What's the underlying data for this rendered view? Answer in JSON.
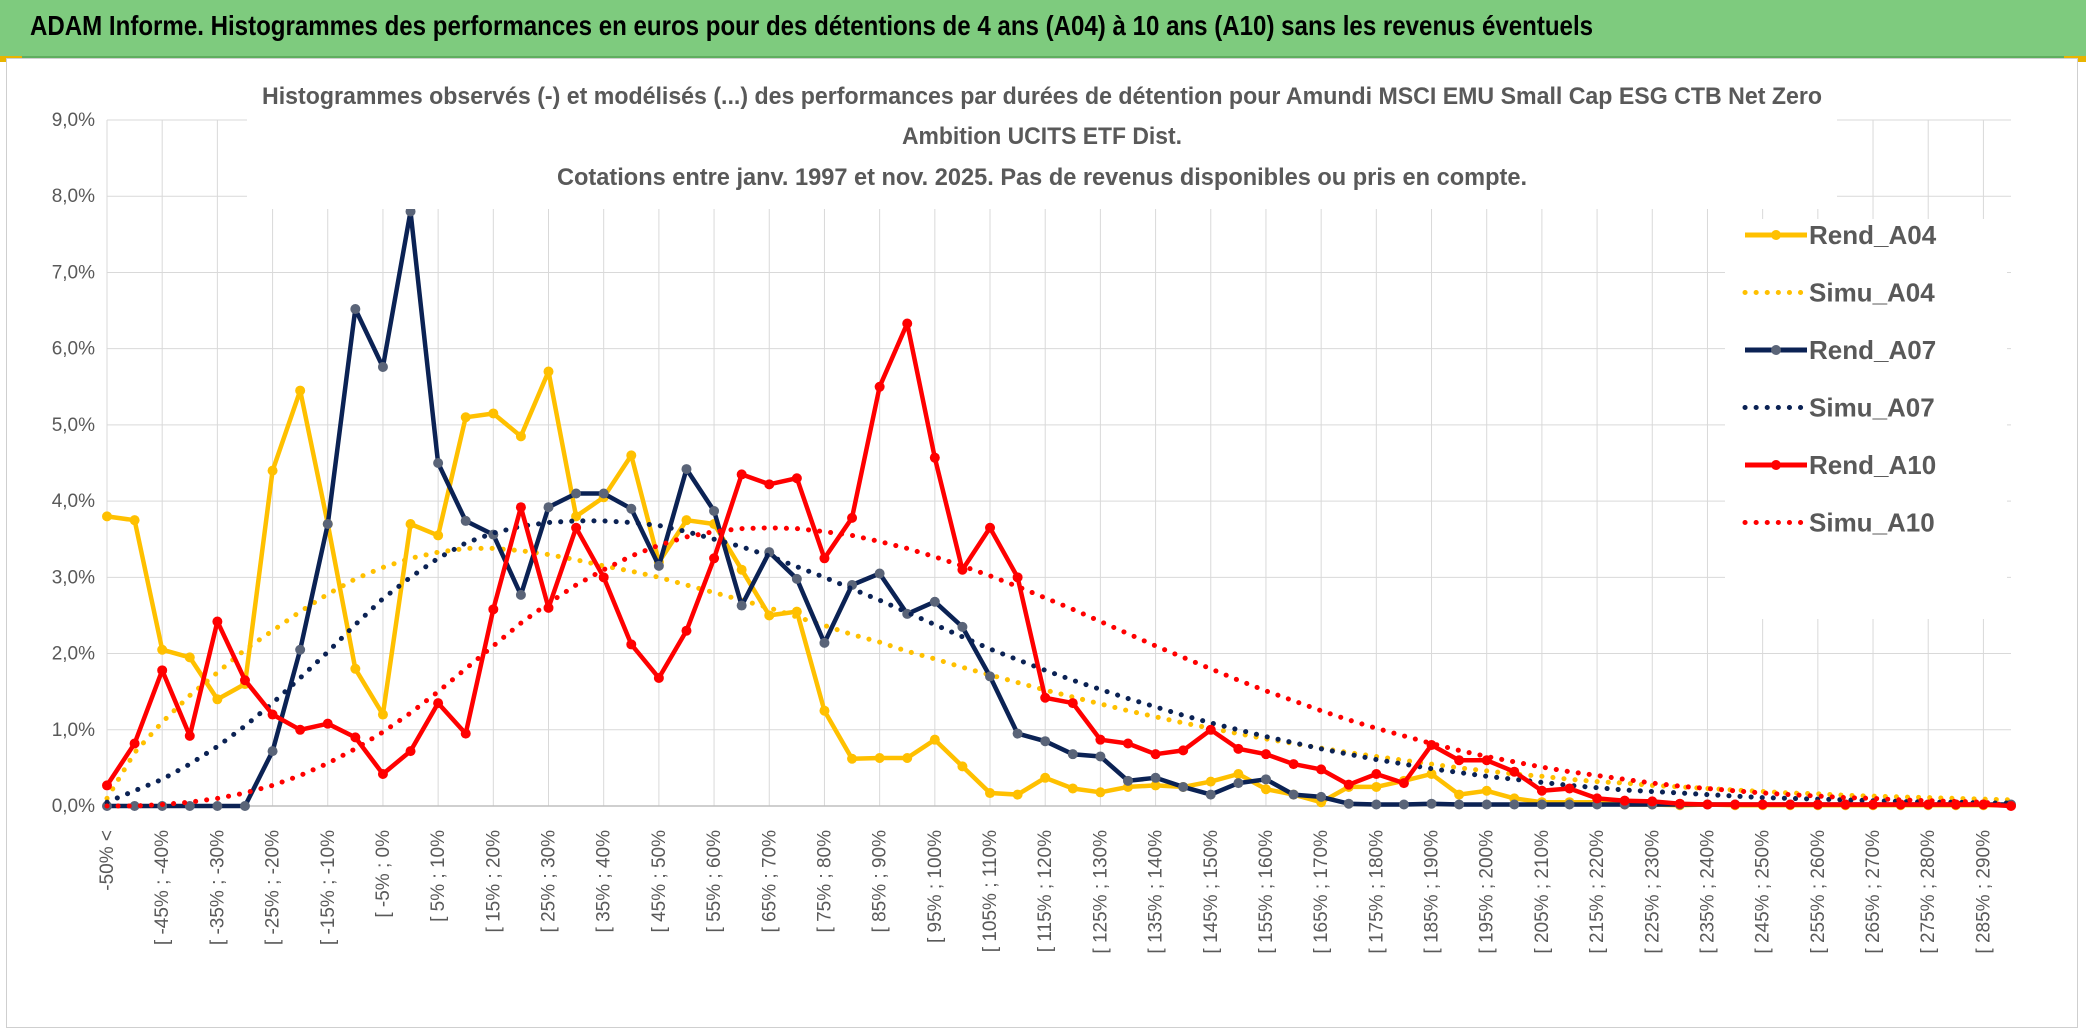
{
  "banner": {
    "title": "ADAM Informe. Histogrammes des performances en euros pour des détentions de 4 ans (A04) à 10 ans (A10) sans les revenus éventuels"
  },
  "colors": {
    "banner_bg": "#7ecb7e",
    "a04": "#ffc000",
    "a07": "#0b2254",
    "a07_marker": "#5a6478",
    "a10": "#ff0000",
    "grid": "#d9d9d9"
  },
  "chart_data": {
    "type": "line",
    "title_lines": [
      "Histogrammes observés (-) et modélisés (...) des performances par durées de détention pour Amundi MSCI EMU Small Cap ESG CTB Net Zero",
      "Ambition UCITS ETF Dist.",
      "Cotations entre janv. 1997 et nov. 2025. Pas de revenus disponibles ou pris en compte."
    ],
    "ylim": [
      0,
      9
    ],
    "y_ticks": [
      "0,0%",
      "1,0%",
      "2,0%",
      "3,0%",
      "4,0%",
      "5,0%",
      "6,0%",
      "7,0%",
      "8,0%",
      "9,0%"
    ],
    "x_tick_labels": [
      "-50% <",
      "[ -45% ; -40%",
      "[ -35% ; -30%",
      "[ -25% ; -20%",
      "[ -15% ; -10%",
      "[ -5% ; 0%",
      "[ 5% ; 10%",
      "[ 15% ; 20%",
      "[ 25% ; 30%",
      "[ 35% ; 40%",
      "[ 45% ; 50%",
      "[ 55% ; 60%",
      "[ 65% ; 70%",
      "[ 75% ; 80%",
      "[ 85% ; 90%",
      "[ 95% ; 100%",
      "[ 105% ; 110%",
      "[ 115% ; 120%",
      "[ 125% ; 130%",
      "[ 135% ; 140%",
      "[ 145% ; 150%",
      "[ 155% ; 160%",
      "[ 165% ; 170%",
      "[ 175% ; 180%",
      "[ 185% ; 190%",
      "[ 195% ; 200%",
      "[ 205% ; 210%",
      "[ 215% ; 220%",
      "[ 225% ; 230%",
      "[ 235% ; 240%",
      "[ 245% ; 250%",
      "[ 255% ; 260%",
      "[ 265% ; 270%",
      "[ 275% ; 280%",
      "[ 285% ; 290%"
    ],
    "series": [
      {
        "name": "Rend_A04",
        "style": "solid",
        "color": "#ffc000",
        "values": [
          3.8,
          3.75,
          2.05,
          1.95,
          1.4,
          1.6,
          4.4,
          5.45,
          3.7,
          1.8,
          1.2,
          3.7,
          3.55,
          5.1,
          5.15,
          4.85,
          5.7,
          3.8,
          4.05,
          4.6,
          3.2,
          3.75,
          3.7,
          3.1,
          2.5,
          2.55,
          1.25,
          0.62,
          0.63,
          0.63,
          0.87,
          0.52,
          0.17,
          0.15,
          0.37,
          0.23,
          0.18,
          0.25,
          0.27,
          0.25,
          0.32,
          0.42,
          0.22,
          0.15,
          0.05,
          0.25,
          0.25,
          0.33,
          0.42,
          0.15,
          0.2,
          0.1,
          0.05,
          0.05,
          0.05,
          0.02,
          0.02,
          0.01,
          0.02,
          0.01,
          0.01,
          0.01,
          0.01,
          0.01,
          0.01,
          0.01,
          0.01,
          0.01,
          0.01,
          0.01
        ]
      },
      {
        "name": "Simu_A04",
        "style": "dotted",
        "color": "#ffc000",
        "values": [
          0.1,
          0.7,
          1.1,
          1.45,
          1.75,
          2.05,
          2.3,
          2.55,
          2.78,
          2.98,
          3.13,
          3.25,
          3.33,
          3.38,
          3.38,
          3.35,
          3.3,
          3.23,
          3.15,
          3.08,
          3.0,
          2.9,
          2.8,
          2.7,
          2.6,
          2.48,
          2.37,
          2.25,
          2.15,
          2.03,
          1.93,
          1.82,
          1.72,
          1.62,
          1.52,
          1.43,
          1.34,
          1.25,
          1.17,
          1.09,
          1.02,
          0.95,
          0.88,
          0.82,
          0.76,
          0.7,
          0.65,
          0.6,
          0.55,
          0.5,
          0.46,
          0.42,
          0.39,
          0.35,
          0.32,
          0.3,
          0.27,
          0.25,
          0.23,
          0.21,
          0.19,
          0.17,
          0.16,
          0.14,
          0.13,
          0.12,
          0.11,
          0.1,
          0.09,
          0.08
        ]
      },
      {
        "name": "Rend_A07",
        "style": "solid",
        "color": "#0b2254",
        "values": [
          0,
          0,
          0,
          0,
          0,
          0,
          0.72,
          2.05,
          3.7,
          6.52,
          5.76,
          7.8,
          4.5,
          3.74,
          3.56,
          2.77,
          3.92,
          4.1,
          4.1,
          3.9,
          3.15,
          4.42,
          3.87,
          2.63,
          3.33,
          2.98,
          2.14,
          2.9,
          3.05,
          2.52,
          2.68,
          2.35,
          1.7,
          0.95,
          0.85,
          0.68,
          0.65,
          0.33,
          0.37,
          0.25,
          0.15,
          0.3,
          0.35,
          0.15,
          0.12,
          0.03,
          0.02,
          0.02,
          0.03,
          0.02,
          0.02,
          0.02,
          0.02,
          0.02,
          0.02,
          0.02,
          0.02,
          0.02,
          0.02,
          0.02,
          0.02,
          0.02,
          0.02,
          0.02,
          0.02,
          0.02,
          0.02,
          0.02,
          0.02,
          0.02
        ]
      },
      {
        "name": "Simu_A07",
        "style": "dotted",
        "color": "#0b2254",
        "values": [
          0.05,
          0.2,
          0.35,
          0.55,
          0.78,
          1.05,
          1.35,
          1.68,
          2.02,
          2.38,
          2.72,
          3.0,
          3.25,
          3.45,
          3.58,
          3.67,
          3.72,
          3.74,
          3.74,
          3.72,
          3.68,
          3.6,
          3.5,
          3.4,
          3.28,
          3.14,
          3.0,
          2.85,
          2.7,
          2.54,
          2.38,
          2.22,
          2.06,
          1.92,
          1.78,
          1.65,
          1.53,
          1.41,
          1.3,
          1.19,
          1.09,
          1.0,
          0.91,
          0.83,
          0.75,
          0.68,
          0.61,
          0.55,
          0.49,
          0.44,
          0.39,
          0.35,
          0.31,
          0.27,
          0.24,
          0.21,
          0.19,
          0.17,
          0.15,
          0.13,
          0.11,
          0.1,
          0.09,
          0.08,
          0.07,
          0.06,
          0.05,
          0.05,
          0.04,
          0.04
        ]
      },
      {
        "name": "Rend_A10",
        "style": "solid",
        "color": "#ff0000",
        "values": [
          0.27,
          0.82,
          1.78,
          0.92,
          2.42,
          1.65,
          1.2,
          1.0,
          1.08,
          0.9,
          0.42,
          0.72,
          1.35,
          0.95,
          2.58,
          3.92,
          2.6,
          3.65,
          3.0,
          2.12,
          1.68,
          2.3,
          3.25,
          4.35,
          4.22,
          4.3,
          3.25,
          3.78,
          5.5,
          6.33,
          4.57,
          3.1,
          3.65,
          3.0,
          1.42,
          1.35,
          0.87,
          0.82,
          0.68,
          0.73,
          1.0,
          0.75,
          0.68,
          0.55,
          0.48,
          0.28,
          0.42,
          0.3,
          0.8,
          0.6,
          0.6,
          0.45,
          0.2,
          0.23,
          0.1,
          0.07,
          0.06,
          0.03,
          0.02,
          0.02,
          0.02,
          0.02,
          0.02,
          0.02,
          0.02,
          0.02,
          0.02,
          0.02,
          0.02,
          0.0
        ]
      },
      {
        "name": "Simu_A10",
        "style": "dotted",
        "color": "#ff0000",
        "values": [
          0.0,
          0.0,
          0.02,
          0.05,
          0.1,
          0.17,
          0.27,
          0.4,
          0.56,
          0.75,
          0.97,
          1.22,
          1.5,
          1.8,
          2.1,
          2.4,
          2.66,
          2.9,
          3.1,
          3.28,
          3.42,
          3.53,
          3.6,
          3.64,
          3.65,
          3.64,
          3.6,
          3.55,
          3.47,
          3.38,
          3.27,
          3.15,
          3.02,
          2.88,
          2.73,
          2.58,
          2.42,
          2.26,
          2.1,
          1.95,
          1.8,
          1.65,
          1.51,
          1.38,
          1.25,
          1.13,
          1.02,
          0.92,
          0.82,
          0.73,
          0.65,
          0.58,
          0.51,
          0.45,
          0.4,
          0.35,
          0.3,
          0.26,
          0.23,
          0.2,
          0.17,
          0.15,
          0.13,
          0.11,
          0.1,
          0.08,
          0.07,
          0.06,
          0.05,
          0.0
        ]
      }
    ],
    "legend_position": "top-right",
    "grid": true
  }
}
